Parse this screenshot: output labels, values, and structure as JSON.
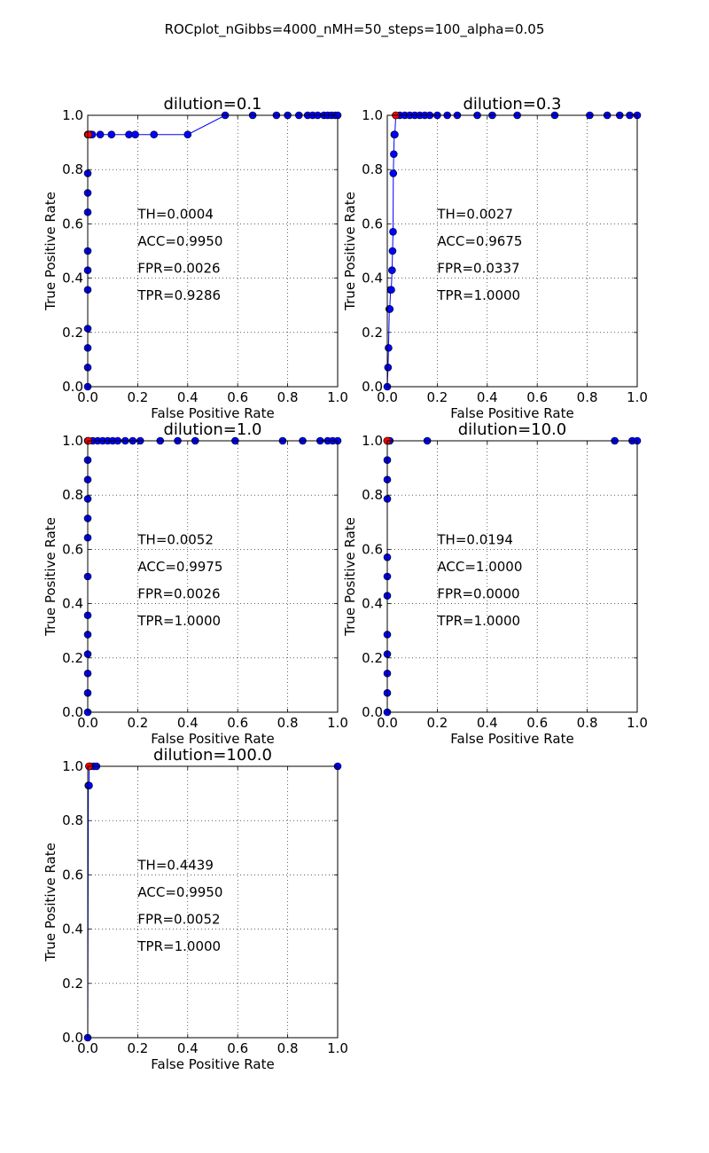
{
  "suptitle": "ROCplot_nGibbs=4000_nMH=50_steps=100_alpha=0.05",
  "chart_data": [
    {
      "type": "line",
      "title": "dilution=0.1",
      "xlabel": "False Positive Rate",
      "ylabel": "True Positive Rate",
      "xlim": [
        0,
        1
      ],
      "ylim": [
        0,
        1
      ],
      "xticks": [
        "0.0",
        "0.2",
        "0.4",
        "0.6",
        "0.8",
        "1.0"
      ],
      "yticks": [
        "0.0",
        "0.2",
        "0.4",
        "0.6",
        "0.8",
        "1.0"
      ],
      "grid": true,
      "stats": [
        "TH=0.0004",
        "ACC=0.9950",
        "FPR=0.0026",
        "TPR=0.9286"
      ],
      "series": [
        {
          "x": [
            0,
            0,
            0,
            0,
            0,
            0,
            0,
            0,
            0,
            0,
            0,
            0.003,
            0.005,
            0.008,
            0.013,
            0.018,
            0.05,
            0.095,
            0.165,
            0.19,
            0.265,
            0.4,
            0.55,
            0.66,
            0.755,
            0.8,
            0.845,
            0.88,
            0.9,
            0.92,
            0.945,
            0.96,
            0.975,
            0.99,
            1.0
          ],
          "y": [
            0,
            0.071,
            0.143,
            0.214,
            0.357,
            0.429,
            0.5,
            0.643,
            0.714,
            0.786,
            0.929,
            0.929,
            0.929,
            0.929,
            0.929,
            0.929,
            0.929,
            0.929,
            0.929,
            0.929,
            0.929,
            0.929,
            1.0,
            1.0,
            1.0,
            1.0,
            1.0,
            1.0,
            1.0,
            1.0,
            1.0,
            1.0,
            1.0,
            1.0,
            1.0
          ]
        }
      ],
      "highlight": {
        "x": 0.0026,
        "y": 0.9286
      }
    },
    {
      "type": "line",
      "title": "dilution=0.3",
      "xlabel": "False Positive Rate",
      "ylabel": "True Positive Rate",
      "xlim": [
        0,
        1
      ],
      "ylim": [
        0,
        1
      ],
      "xticks": [
        "0.0",
        "0.2",
        "0.4",
        "0.6",
        "0.8",
        "1.0"
      ],
      "yticks": [
        "0.0",
        "0.2",
        "0.4",
        "0.6",
        "0.8",
        "1.0"
      ],
      "grid": true,
      "stats": [
        "TH=0.0027",
        "ACC=0.9675",
        "FPR=0.0337",
        "TPR=1.0000"
      ],
      "series": [
        {
          "x": [
            0,
            0.003,
            0.005,
            0.008,
            0.01,
            0.013,
            0.016,
            0.019,
            0.021,
            0.023,
            0.024,
            0.026,
            0.028,
            0.03,
            0.034,
            0.05,
            0.07,
            0.09,
            0.11,
            0.13,
            0.15,
            0.17,
            0.2,
            0.24,
            0.28,
            0.36,
            0.42,
            0.52,
            0.67,
            0.81,
            0.88,
            0.93,
            0.97,
            1.0
          ],
          "y": [
            0,
            0.071,
            0.143,
            0.286,
            0.286,
            0.357,
            0.357,
            0.429,
            0.5,
            0.571,
            0.786,
            0.857,
            0.929,
            0.929,
            1.0,
            1.0,
            1.0,
            1.0,
            1.0,
            1.0,
            1.0,
            1.0,
            1.0,
            1.0,
            1.0,
            1.0,
            1.0,
            1.0,
            1.0,
            1.0,
            1.0,
            1.0,
            1.0,
            1.0
          ]
        }
      ],
      "highlight": {
        "x": 0.0337,
        "y": 1.0
      }
    },
    {
      "type": "line",
      "title": "dilution=1.0",
      "xlabel": "False Positive Rate",
      "ylabel": "True Positive Rate",
      "xlim": [
        0,
        1
      ],
      "ylim": [
        0,
        1
      ],
      "xticks": [
        "0.0",
        "0.2",
        "0.4",
        "0.6",
        "0.8",
        "1.0"
      ],
      "yticks": [
        "0.0",
        "0.2",
        "0.4",
        "0.6",
        "0.8",
        "1.0"
      ],
      "grid": true,
      "stats": [
        "TH=0.0052",
        "ACC=0.9975",
        "FPR=0.0026",
        "TPR=1.0000"
      ],
      "series": [
        {
          "x": [
            0,
            0,
            0,
            0,
            0,
            0,
            0,
            0,
            0,
            0,
            0,
            0,
            0,
            0.0026,
            0.02,
            0.04,
            0.06,
            0.08,
            0.1,
            0.12,
            0.15,
            0.18,
            0.21,
            0.29,
            0.36,
            0.43,
            0.59,
            0.78,
            0.86,
            0.93,
            0.96,
            0.98,
            1.0
          ],
          "y": [
            0,
            0.071,
            0.143,
            0.214,
            0.286,
            0.357,
            0.5,
            0.643,
            0.714,
            0.786,
            0.857,
            0.929,
            1.0,
            1.0,
            1.0,
            1.0,
            1.0,
            1.0,
            1.0,
            1.0,
            1.0,
            1.0,
            1.0,
            1.0,
            1.0,
            1.0,
            1.0,
            1.0,
            1.0,
            1.0,
            1.0,
            1.0,
            1.0
          ]
        }
      ],
      "highlight": {
        "x": 0.0026,
        "y": 1.0
      }
    },
    {
      "type": "line",
      "title": "dilution=10.0",
      "xlabel": "False Positive Rate",
      "ylabel": "",
      "ylabel_printed": "True Positive Rate",
      "xlim": [
        0,
        1
      ],
      "ylim": [
        0,
        1
      ],
      "xticks": [
        "0.0",
        "0.2",
        "0.4",
        "0.6",
        "0.8",
        "1.0"
      ],
      "yticks": [
        "0.0",
        "0.2",
        "0.4",
        "0.6",
        "0.8",
        "1.0"
      ],
      "grid": true,
      "stats": [
        "TH=0.0194",
        "ACC=1.0000",
        "FPR=0.0000",
        "TPR=1.0000"
      ],
      "series": [
        {
          "x": [
            0,
            0,
            0,
            0,
            0,
            0,
            0,
            0,
            0,
            0,
            0,
            0,
            0,
            0.005,
            0.01,
            0.16,
            0.91,
            0.98,
            1.0
          ],
          "y": [
            0,
            0.071,
            0.143,
            0.214,
            0.286,
            0.429,
            0.5,
            0.571,
            0.786,
            0.857,
            0.929,
            1.0,
            1.0,
            1.0,
            1.0,
            1.0,
            1.0,
            1.0,
            1.0
          ]
        }
      ],
      "highlight": {
        "x": 0.0,
        "y": 1.0
      }
    },
    {
      "type": "line",
      "title": "dilution=100.0",
      "xlabel": "False Positive Rate",
      "ylabel": "True Positive Rate",
      "xlim": [
        0,
        1
      ],
      "ylim": [
        0,
        1
      ],
      "xticks": [
        "0.0",
        "0.2",
        "0.4",
        "0.6",
        "0.8",
        "1.0"
      ],
      "yticks": [
        "0.0",
        "0.2",
        "0.4",
        "0.6",
        "0.8",
        "1.0"
      ],
      "grid": true,
      "stats": [
        "TH=0.4439",
        "ACC=0.9950",
        "FPR=0.0052",
        "TPR=1.0000"
      ],
      "series": [
        {
          "x": [
            0,
            0.0026,
            0.0052,
            0.0052,
            0.01,
            0.025,
            0.035,
            1.0
          ],
          "y": [
            0,
            0.929,
            0.929,
            1.0,
            1.0,
            1.0,
            1.0,
            1.0
          ]
        }
      ],
      "highlight": {
        "x": 0.0052,
        "y": 1.0
      }
    }
  ]
}
